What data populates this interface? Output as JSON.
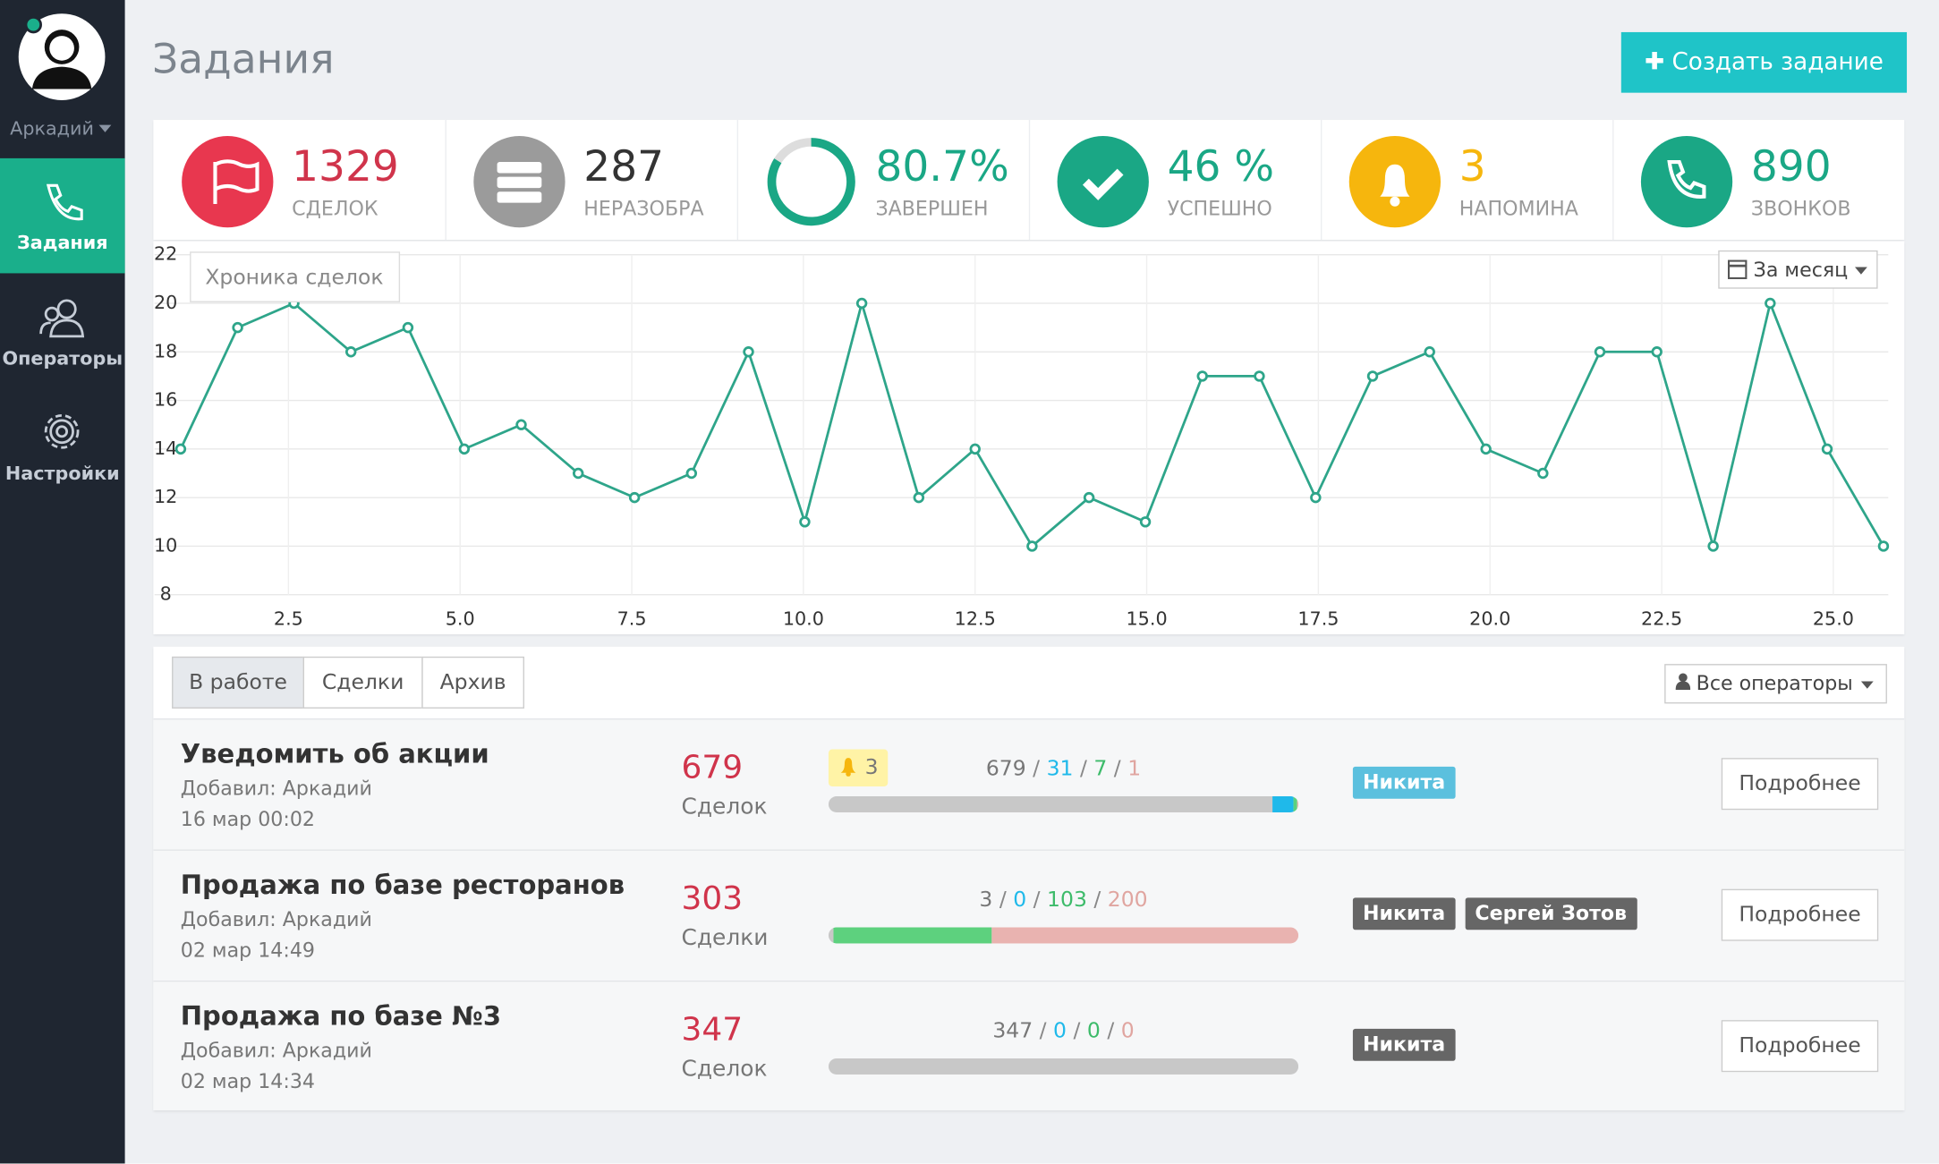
{
  "sidebar": {
    "user": "Аркадий",
    "menu": [
      "Задания",
      "Операторы",
      "Настройки"
    ]
  },
  "header": {
    "title": "Задания",
    "button": "Создать задание"
  },
  "stats": [
    {
      "value": "1329",
      "label": "СДЕЛОК"
    },
    {
      "value": "287",
      "label": "НЕРАЗОБРА"
    },
    {
      "value": "80.7%",
      "label": "ЗАВЕРШЕН"
    },
    {
      "value": "46 %",
      "label": "УСПЕШНО"
    },
    {
      "value": "3",
      "label": "НАПОМИНА"
    },
    {
      "value": "890",
      "label": "ЗВОНКОВ"
    }
  ],
  "chart_data": {
    "type": "line",
    "title": "Хроника сделок",
    "period": "За месяц",
    "color": "#2ea58a",
    "x": [
      0.93,
      1.76,
      2.58,
      3.41,
      4.24,
      5.06,
      5.89,
      6.72,
      7.54,
      8.37,
      9.2,
      10.02,
      10.85,
      11.68,
      12.5,
      13.33,
      14.16,
      14.98,
      15.81,
      16.64,
      17.46,
      18.29,
      19.12,
      19.94,
      20.77,
      21.6,
      22.43,
      23.25,
      24.08,
      24.91,
      25.73
    ],
    "values": [
      14,
      19,
      20,
      18,
      19,
      14,
      15,
      13,
      12,
      13,
      18,
      11,
      20,
      12,
      14,
      10,
      12,
      11,
      17,
      17,
      12,
      17,
      18,
      14,
      13,
      18,
      18,
      10,
      20,
      14,
      10
    ],
    "xlim": [
      0.55,
      25.8
    ],
    "ylim": [
      8,
      22
    ],
    "xticks": [
      2.5,
      {
        "value": 5,
        "label": "5.0"
      },
      7.5,
      {
        "value": 10,
        "label": "10.0"
      },
      12.5,
      {
        "value": 15,
        "label": "15.0"
      },
      17.5,
      {
        "value": 20,
        "label": "20.0"
      },
      22.5,
      {
        "value": 25,
        "label": "25.0"
      }
    ],
    "yticks": [
      8,
      10,
      12,
      14,
      16,
      18,
      20,
      22
    ],
    "grid": true
  },
  "tabs": [
    "В работе",
    "Сделки",
    "Архив"
  ],
  "filter": "Все операторы",
  "tasks": [
    {
      "title": "Уведомить об акции",
      "author": "Добавил: Аркадий",
      "date": "16 мар 00:02",
      "count": "679",
      "unit": "Сделок",
      "reminders": "3",
      "progress": [
        679,
        31,
        7,
        1
      ],
      "operators": [
        "Никита"
      ],
      "button": "Подробнее"
    },
    {
      "title": "Продажа по базе ресторанов",
      "author": "Добавил: Аркадий",
      "date": "02 мар 14:49",
      "count": "303",
      "unit": "Сделки",
      "progress": [
        3,
        0,
        103,
        200
      ],
      "operators": [
        "Никита",
        "Сергей Зотов"
      ],
      "button": "Подробнее"
    },
    {
      "title": "Продажа по базе №3",
      "author": "Добавил: Аркадий",
      "date": "02 мар 14:34",
      "count": "347",
      "unit": "Сделок",
      "progress": [
        347,
        0,
        0,
        0
      ],
      "operators": [
        "Никита"
      ],
      "button": "Подробнее"
    }
  ]
}
